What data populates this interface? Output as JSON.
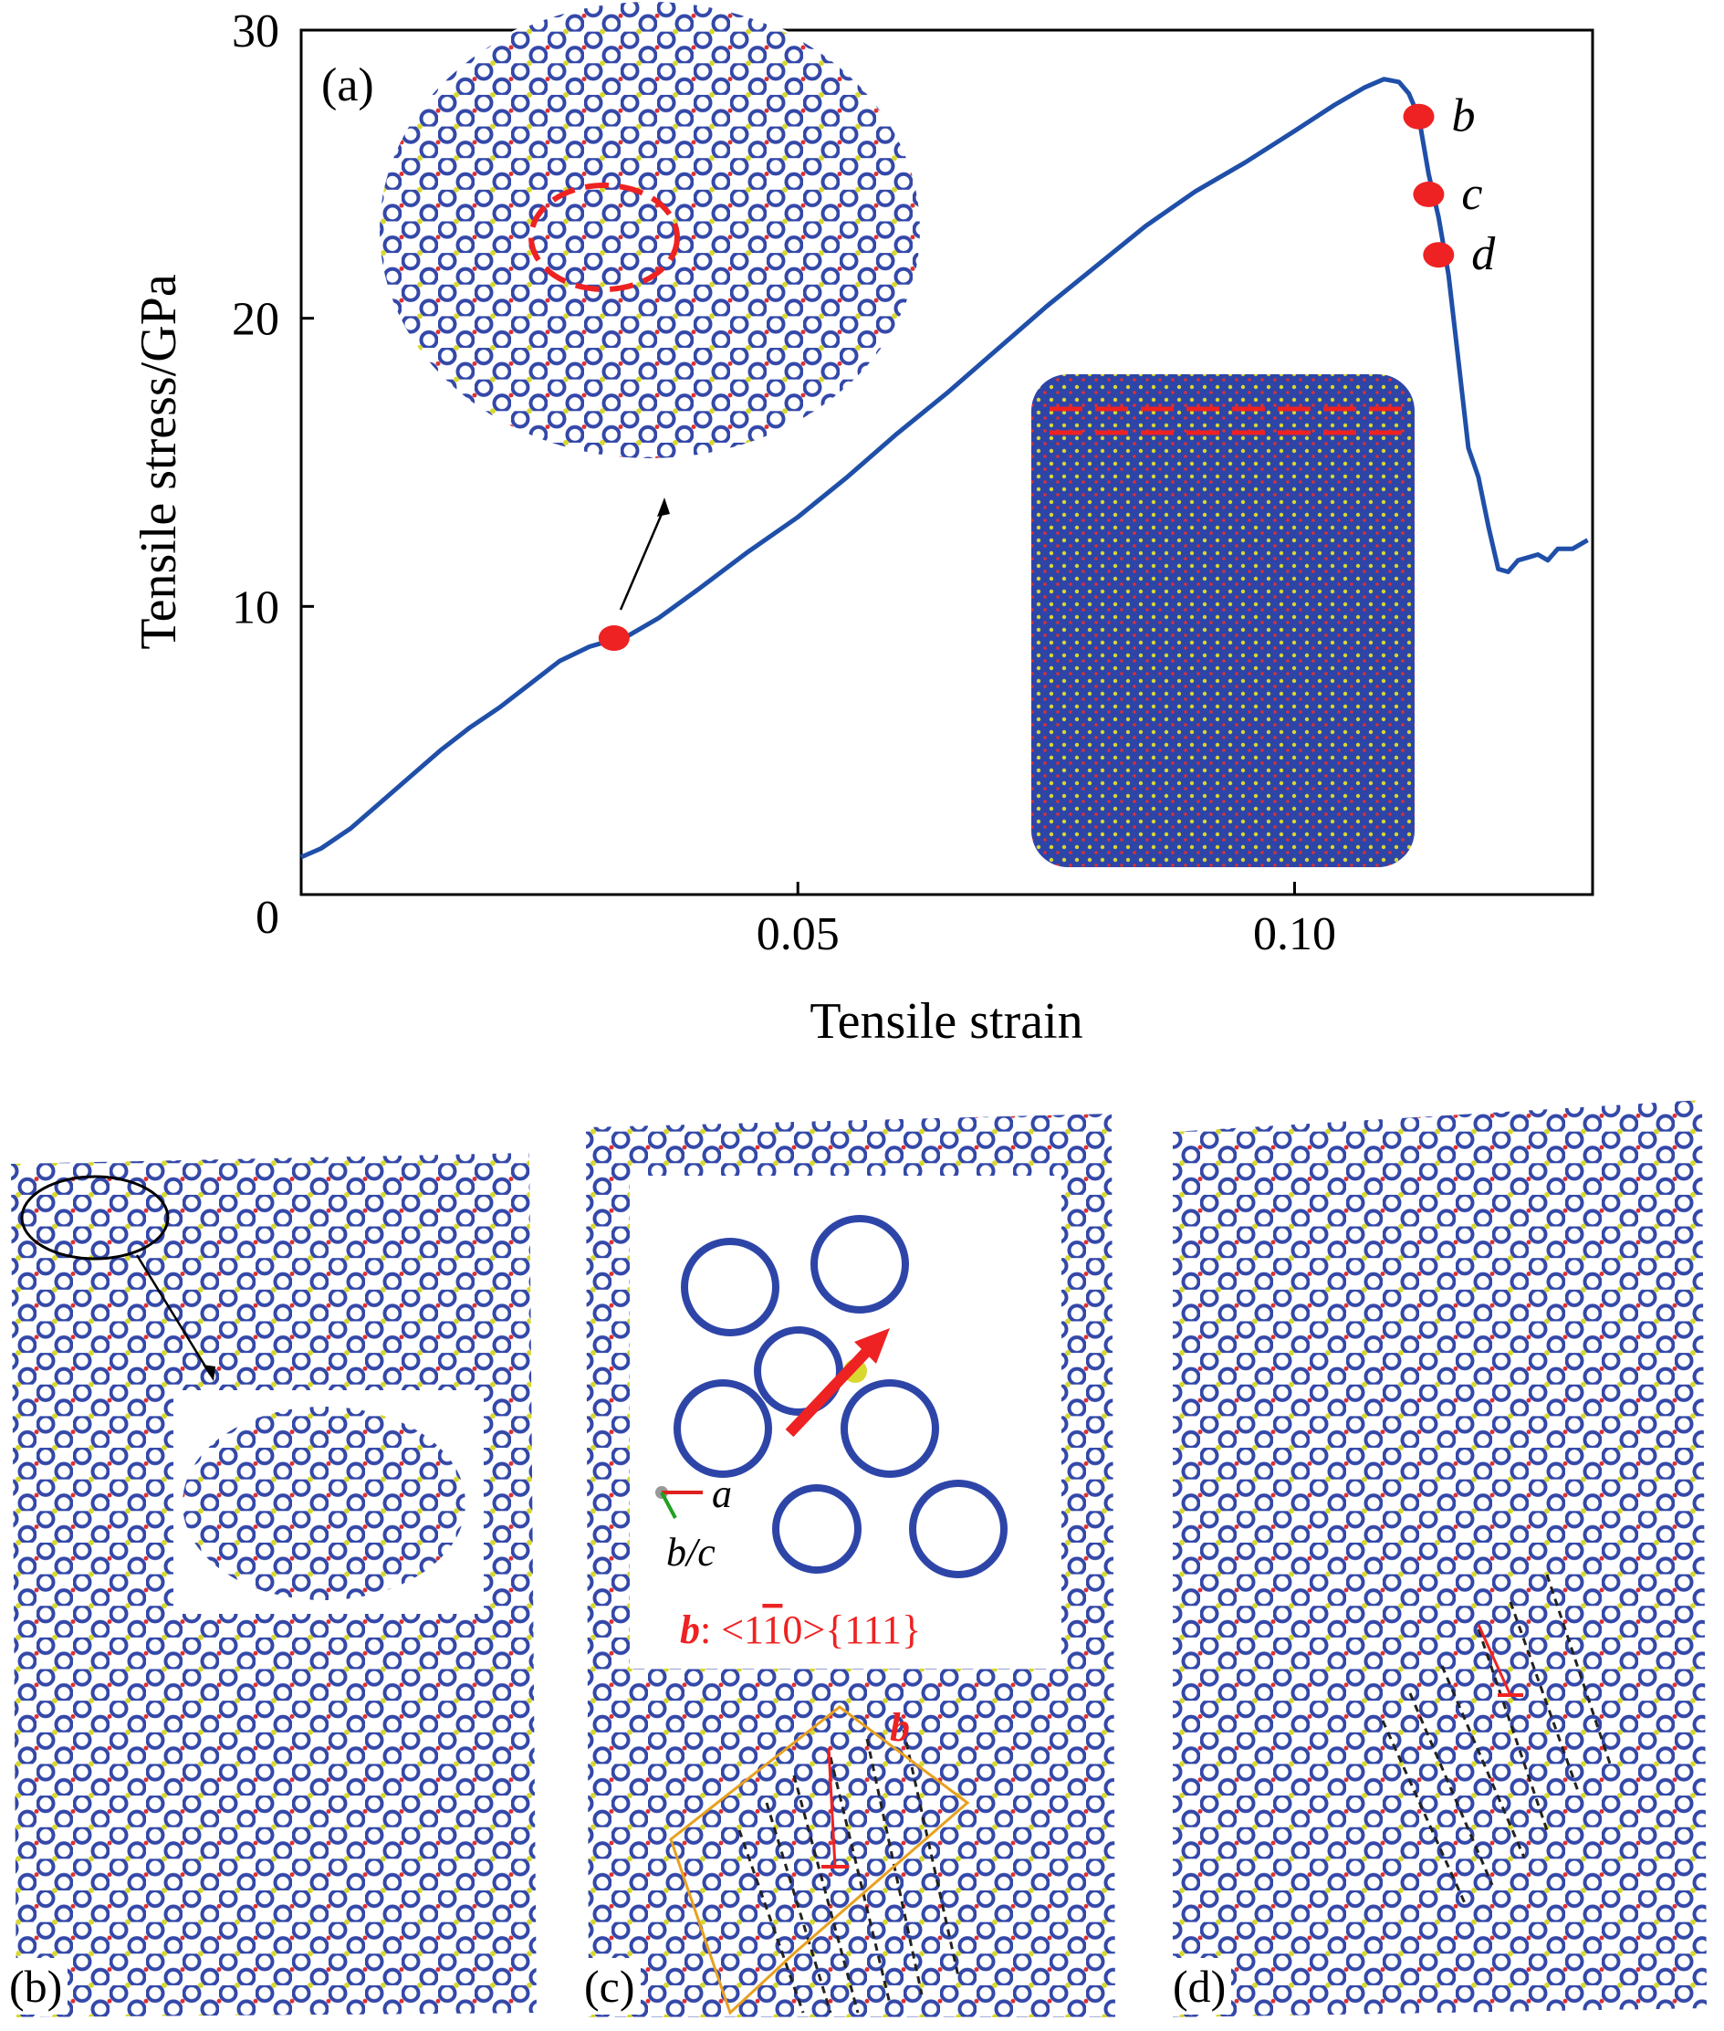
{
  "chart_data": {
    "type": "line",
    "panel_label": "(a)",
    "xlabel": "Tensile strain",
    "ylabel": "Tensile stress/GPa",
    "xlim": [
      0,
      0.13
    ],
    "ylim": [
      0,
      30
    ],
    "x_ticks": [
      0.05,
      0.1
    ],
    "x_tick_labels": [
      "0.05",
      "0.10"
    ],
    "y_ticks": [
      0,
      10,
      20,
      30
    ],
    "y_tick_labels": [
      "0",
      "10",
      "20",
      "30"
    ],
    "grid": false,
    "series": [
      {
        "color": "#1f4fa8",
        "points": [
          [
            0.0,
            1.3
          ],
          [
            0.002,
            1.6
          ],
          [
            0.005,
            2.3
          ],
          [
            0.008,
            3.2
          ],
          [
            0.011,
            4.1
          ],
          [
            0.014,
            5.0
          ],
          [
            0.017,
            5.8
          ],
          [
            0.02,
            6.5
          ],
          [
            0.023,
            7.3
          ],
          [
            0.026,
            8.1
          ],
          [
            0.029,
            8.6
          ],
          [
            0.031,
            8.8
          ],
          [
            0.033,
            9.0
          ],
          [
            0.036,
            9.6
          ],
          [
            0.04,
            10.6
          ],
          [
            0.045,
            11.9
          ],
          [
            0.05,
            13.1
          ],
          [
            0.055,
            14.5
          ],
          [
            0.06,
            16.0
          ],
          [
            0.065,
            17.4
          ],
          [
            0.07,
            18.9
          ],
          [
            0.075,
            20.4
          ],
          [
            0.08,
            21.8
          ],
          [
            0.085,
            23.2
          ],
          [
            0.09,
            24.4
          ],
          [
            0.095,
            25.4
          ],
          [
            0.1,
            26.5
          ],
          [
            0.104,
            27.4
          ],
          [
            0.107,
            28.0
          ],
          [
            0.109,
            28.3
          ],
          [
            0.1105,
            28.2
          ],
          [
            0.1115,
            27.8
          ],
          [
            0.1125,
            27.0
          ],
          [
            0.1135,
            25.0
          ],
          [
            0.1145,
            23.5
          ],
          [
            0.1155,
            21.5
          ],
          [
            0.1165,
            18.5
          ],
          [
            0.1175,
            15.5
          ],
          [
            0.1185,
            14.5
          ],
          [
            0.1195,
            12.8
          ],
          [
            0.1205,
            11.3
          ],
          [
            0.1215,
            11.2
          ],
          [
            0.1225,
            11.6
          ],
          [
            0.1235,
            11.7
          ],
          [
            0.1245,
            11.8
          ],
          [
            0.1255,
            11.6
          ],
          [
            0.1265,
            12.0
          ],
          [
            0.128,
            12.0
          ],
          [
            0.1295,
            12.3
          ]
        ]
      }
    ],
    "markers": [
      {
        "x": 0.0315,
        "y": 8.9,
        "label": ""
      },
      {
        "x": 0.1125,
        "y": 27.0,
        "label": "b"
      },
      {
        "x": 0.1135,
        "y": 24.3,
        "label": "c"
      },
      {
        "x": 0.1145,
        "y": 22.2,
        "label": "d"
      }
    ],
    "marker_color": "#ee2222"
  },
  "panels": [
    {
      "label": "(b)"
    },
    {
      "label": "(c)",
      "axis_a": "a",
      "axis_bc": "b/c",
      "burgers_symbol": "b",
      "burgers_text": ": <110>{111}",
      "overline_char": "1",
      "vector_label": "b"
    },
    {
      "label": "(d)"
    }
  ],
  "colors": {
    "bond": "#3348a8",
    "boron_light": "#d8d830",
    "oxygen": "#e03030",
    "orange": "#e8a020"
  }
}
